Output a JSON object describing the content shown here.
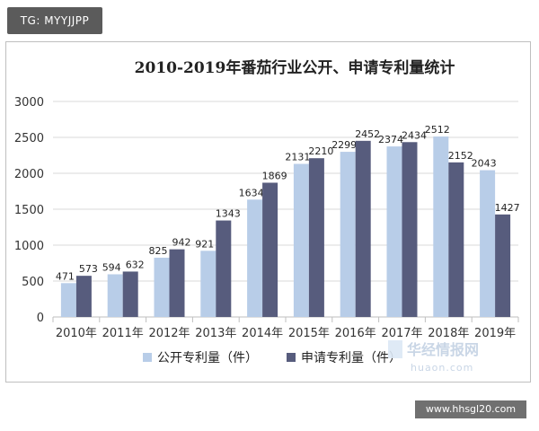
{
  "watermark": {
    "tag": "TG: MYYJJPP",
    "brand_cn": "华经情报网",
    "brand_url": "huaon.com",
    "site": "www.hhsgl20.com"
  },
  "chart_data": {
    "type": "bar",
    "title": "2010-2019年番茄行业公开、申请专利量统计",
    "categories": [
      "2010年",
      "2011年",
      "2012年",
      "2013年",
      "2014年",
      "2015年",
      "2016年",
      "2017年",
      "2018年",
      "2019年"
    ],
    "series": [
      {
        "name": "公开专利量（件）",
        "values": [
          471,
          594,
          825,
          921,
          1634,
          2131,
          2299,
          2374,
          2512,
          2043
        ],
        "color": "#b8cde8"
      },
      {
        "name": "申请专利量（件）",
        "values": [
          573,
          632,
          942,
          1343,
          1869,
          2210,
          2452,
          2434,
          2152,
          1427
        ],
        "color": "#575c7d"
      }
    ],
    "ylim": [
      0,
      3000
    ],
    "yticks": [
      0,
      500,
      1000,
      1500,
      2000,
      2500,
      3000
    ],
    "xlabel": "",
    "ylabel": "",
    "grid": true,
    "legend": "bottom"
  }
}
